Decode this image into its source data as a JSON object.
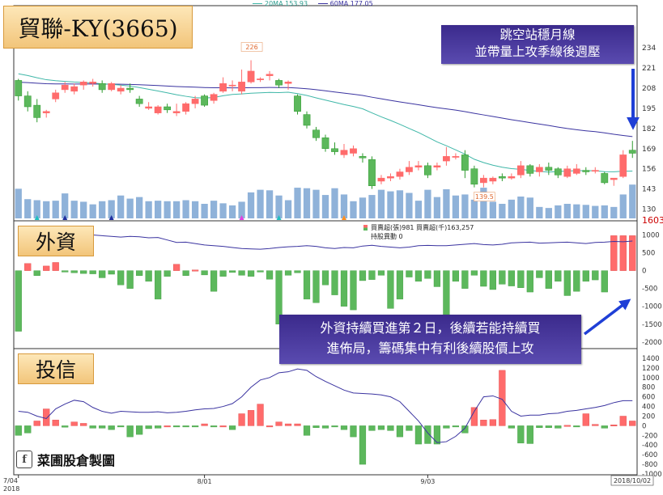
{
  "header": {
    "ma20_label": "20MA 153.93",
    "ma60_label": "60MA 177.05",
    "ma20_color": "#3fb7a8",
    "ma60_color": "#3a33a0"
  },
  "title": "貿聯-KY(3665)",
  "panels": {
    "foreign": {
      "label": "外資",
      "legend_line1": "買賣超(張)981 買賣超(千)163,257",
      "legend_line2": "持股異動 0"
    },
    "trust": {
      "label": "投信"
    }
  },
  "annotations": {
    "top_line1": "跳空站穩月線",
    "top_line2": "並帶量上攻季線後週壓",
    "mid_line1": "外資持續買進第２日，後續若能持續買",
    "mid_line2": "進佈局，籌碼集中有利後續股價上攻"
  },
  "credit": {
    "text": "菜圃股倉製圖",
    "icon": "facebook-icon"
  },
  "colors": {
    "up": "#ff6b6b",
    "down": "#5cb85c",
    "volume": "#8fb2d9",
    "accent_label": "#cc0000",
    "note_bg": "#4a3aa0",
    "arrow": "#1f3fd6"
  },
  "chart_data": [
    {
      "type": "candlestick",
      "title": "貿聯-KY(3665)",
      "x_ticks": [
        "7/04\n2018",
        "8/01",
        "9/03",
        "2018/10/02"
      ],
      "y_ticks": [
        130,
        143,
        156,
        169,
        182,
        195,
        208,
        221,
        234
      ],
      "ylim": [
        124,
        244
      ],
      "right_label": "1603",
      "price_labels": [
        {
          "index": 25,
          "text": "226"
        },
        {
          "index": 50,
          "text": "139.5"
        }
      ],
      "candles": [
        [
          213,
          203,
          214,
          200
        ],
        [
          203,
          196,
          206,
          193
        ],
        [
          197,
          189,
          201,
          186
        ],
        [
          192,
          193,
          194,
          189
        ],
        [
          201,
          205,
          207,
          199
        ],
        [
          207,
          210,
          212,
          205
        ],
        [
          206,
          209,
          211,
          204
        ],
        [
          210,
          212,
          213,
          207
        ],
        [
          211,
          212,
          214,
          209
        ],
        [
          211,
          207,
          213,
          205
        ],
        [
          207,
          211,
          212,
          206
        ],
        [
          206,
          208,
          210,
          204
        ],
        [
          208,
          207,
          211,
          205
        ],
        [
          201,
          198,
          203,
          196
        ],
        [
          195,
          196,
          199,
          194
        ],
        [
          192,
          196,
          197,
          191
        ],
        [
          196,
          194,
          198,
          192
        ],
        [
          192,
          193,
          198,
          190
        ],
        [
          193,
          198,
          199,
          191
        ],
        [
          198,
          201,
          203,
          195
        ],
        [
          203,
          197,
          204,
          196
        ],
        [
          200,
          204,
          205,
          198
        ],
        [
          206,
          211,
          215,
          205
        ],
        [
          210,
          210,
          213,
          206
        ],
        [
          206,
          212,
          220,
          204
        ],
        [
          212,
          219,
          226,
          211
        ],
        [
          214,
          214,
          215,
          212
        ],
        [
          216,
          217,
          219,
          213
        ],
        [
          213,
          210,
          214,
          208
        ],
        [
          211,
          212,
          213,
          207
        ],
        [
          203,
          193,
          204,
          191
        ],
        [
          191,
          184,
          193,
          182
        ],
        [
          181,
          176,
          183,
          174
        ],
        [
          176,
          169,
          178,
          167
        ],
        [
          169,
          167,
          173,
          165
        ],
        [
          165,
          168,
          172,
          163
        ],
        [
          166,
          169,
          171,
          164
        ],
        [
          164,
          163,
          166,
          160
        ],
        [
          162,
          145,
          164,
          143
        ],
        [
          148,
          150,
          152,
          146
        ],
        [
          150,
          151,
          153,
          148
        ],
        [
          151,
          154,
          156,
          149
        ],
        [
          154,
          157,
          161,
          152
        ],
        [
          157,
          158,
          161,
          155
        ],
        [
          158,
          152,
          160,
          150
        ],
        [
          157,
          158,
          160,
          155
        ],
        [
          161,
          164,
          170,
          158
        ],
        [
          164,
          164,
          166,
          162
        ],
        [
          165,
          155,
          168,
          150
        ],
        [
          156,
          146,
          158,
          144
        ],
        [
          147,
          150,
          152,
          144
        ],
        [
          148,
          150,
          151,
          146
        ],
        [
          151,
          150,
          153,
          148
        ],
        [
          150,
          151,
          153,
          149
        ],
        [
          152,
          158,
          161,
          150
        ],
        [
          158,
          153,
          159,
          151
        ],
        [
          154,
          157,
          159,
          151
        ],
        [
          157,
          155,
          160,
          152
        ],
        [
          156,
          152,
          157,
          150
        ],
        [
          151,
          156,
          158,
          150
        ],
        [
          153,
          156,
          159,
          152
        ],
        [
          155,
          154,
          157,
          152
        ],
        [
          155,
          155,
          157,
          153
        ],
        [
          153,
          147,
          154,
          146
        ],
        [
          149,
          150,
          150,
          145
        ],
        [
          151,
          165,
          168,
          150
        ],
        [
          168,
          166,
          174,
          163
        ]
      ],
      "volume": [
        57,
        37,
        35,
        33,
        34,
        48,
        34,
        32,
        27,
        33,
        35,
        44,
        38,
        41,
        33,
        34,
        33,
        33,
        35,
        33,
        28,
        34,
        29,
        25,
        32,
        50,
        55,
        54,
        44,
        35,
        59,
        58,
        55,
        45,
        58,
        46,
        33,
        40,
        45,
        55,
        52,
        54,
        49,
        34,
        55,
        41,
        56,
        44,
        46,
        36,
        59,
        32,
        28,
        36,
        42,
        40,
        22,
        20,
        25,
        28,
        27,
        26,
        24,
        25,
        22,
        46,
        65
      ],
      "markers": [
        {
          "index": 2,
          "color": "#20c0c0"
        },
        {
          "index": 5,
          "color": "#2030a0"
        },
        {
          "index": 10,
          "color": "#2030a0"
        },
        {
          "index": 24,
          "color": "#e040e0"
        },
        {
          "index": 28,
          "color": "#20c0c0"
        },
        {
          "index": 35,
          "color": "#ff9020"
        }
      ]
    },
    {
      "type": "bar",
      "name": "外資",
      "y_ticks": [
        1000,
        500,
        0,
        -500,
        -1000,
        -1500,
        -2000
      ],
      "ylim": [
        -2050,
        1080
      ],
      "values": [
        -1700,
        200,
        -140,
        130,
        230,
        -40,
        -60,
        -80,
        -90,
        -200,
        -100,
        -400,
        -500,
        -140,
        -300,
        -800,
        -160,
        180,
        -140,
        20,
        -120,
        -580,
        -160,
        -50,
        -130,
        -160,
        -40,
        -240,
        -1500,
        -130,
        -60,
        -800,
        -900,
        -400,
        -680,
        -1000,
        -1100,
        -280,
        -250,
        -130,
        -1060,
        -800,
        -180,
        -300,
        -220,
        -450,
        -1300,
        -300,
        -500,
        -130,
        -440,
        -530,
        -380,
        -430,
        -480,
        -600,
        -200,
        -500,
        -300,
        -700,
        -580,
        -300,
        -260,
        -600,
        981,
        981,
        981
      ],
      "line": [
        1040,
        980,
        980,
        1020,
        1070,
        980,
        990,
        1010,
        1000,
        980,
        960,
        940,
        960,
        950,
        920,
        930,
        860,
        790,
        800,
        760,
        720,
        700,
        680,
        650,
        620,
        610,
        600,
        620,
        650,
        670,
        680,
        700,
        680,
        640,
        620,
        650,
        640,
        690,
        710,
        680,
        660,
        640,
        660,
        700,
        710,
        700,
        700,
        720,
        740,
        760,
        730,
        720,
        740,
        780,
        790,
        800,
        770,
        780,
        790,
        800,
        780,
        760,
        790,
        800,
        820,
        810,
        830
      ]
    },
    {
      "type": "bar",
      "name": "投信",
      "y_ticks": [
        1400,
        1200,
        1000,
        800,
        600,
        400,
        200,
        0,
        -200,
        -400,
        -600,
        -800,
        -1000
      ],
      "ylim": [
        -1000,
        1450
      ],
      "values": [
        -200,
        -150,
        100,
        350,
        120,
        -30,
        80,
        50,
        -50,
        -50,
        -80,
        -20,
        -230,
        -180,
        -60,
        -50,
        0,
        -20,
        -20,
        -20,
        40,
        -10,
        0,
        -80,
        250,
        320,
        450,
        0,
        80,
        40,
        40,
        -200,
        -40,
        -50,
        -10,
        -80,
        -230,
        -800,
        -100,
        -80,
        -100,
        -230,
        -100,
        -380,
        -370,
        -380,
        -50,
        -20,
        -150,
        380,
        120,
        130,
        1150,
        -50,
        -360,
        -370,
        -40,
        -40,
        -50,
        10,
        -10,
        250,
        30,
        -50,
        20,
        200,
        100
      ],
      "line": [
        300,
        280,
        200,
        150,
        350,
        450,
        530,
        500,
        380,
        300,
        260,
        300,
        290,
        280,
        280,
        290,
        270,
        280,
        300,
        330,
        350,
        360,
        400,
        460,
        600,
        800,
        950,
        1000,
        1100,
        1120,
        1180,
        1150,
        1020,
        920,
        830,
        740,
        680,
        670,
        660,
        640,
        600,
        500,
        300,
        100,
        -150,
        -350,
        -330,
        -220,
        -50,
        300,
        600,
        620,
        550,
        300,
        200,
        220,
        220,
        250,
        260,
        300,
        320,
        350,
        380,
        420,
        480,
        520,
        520
      ]
    }
  ]
}
